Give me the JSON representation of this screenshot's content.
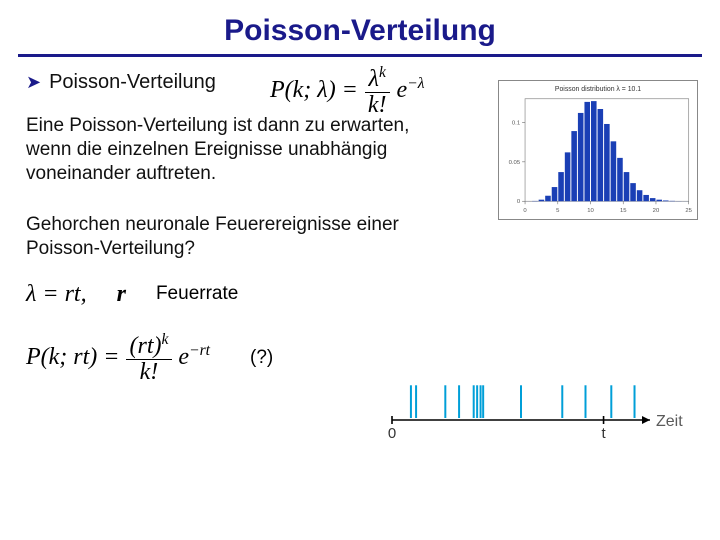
{
  "title": "Poisson-Verteilung",
  "bullet": {
    "icon": "➤",
    "text": "Poisson-Verteilung"
  },
  "formula_main": {
    "lhs": "P(k; λ) =",
    "num": "λ",
    "num_sup": "k",
    "den": "k!",
    "tail_e": "e",
    "tail_exp": "−λ"
  },
  "para1": "Eine Poisson-Verteilung ist dann zu erwarten, wenn die einzelnen Ereignisse unabhängig voneinander auftreten.",
  "para2": "Gehorchen neuronale Feuerereignisse einer Poisson-Verteilung?",
  "lambda_row": {
    "eq_lhs": "λ = rt,",
    "r": "r",
    "label": "Feuerrate"
  },
  "formula2": {
    "lhs": "P(k; rt) =",
    "num_base": "(rt)",
    "num_sup": "k",
    "den": "k!",
    "tail_e": "e",
    "tail_exp": "−rt"
  },
  "question_mark": "(?)",
  "poisson_chart": {
    "type": "bar",
    "title": "Poisson distribution   λ = 10.1",
    "title_fontsize": 7,
    "bar_color": "#1a3fb5",
    "border_color": "#888888",
    "background_color": "#ffffff",
    "xlim": [
      0,
      25
    ],
    "ylim": [
      0,
      0.13
    ],
    "values": [
      5e-05,
      0.0004,
      0.002,
      0.007,
      0.018,
      0.037,
      0.062,
      0.089,
      0.112,
      0.126,
      0.127,
      0.117,
      0.098,
      0.076,
      0.055,
      0.037,
      0.023,
      0.014,
      0.008,
      0.004,
      0.002,
      0.001,
      0.0005,
      0.0002,
      0.0001
    ],
    "bar_width": 0.85,
    "xtick_step": 5
  },
  "spike_plot": {
    "type": "raster",
    "axis_color": "#000000",
    "spike_color": "#009fd8",
    "spike_width": 2,
    "spike_height_ratio": 0.62,
    "xlabel_zero": "0",
    "xlabel_t": "t",
    "axis_label": "Zeit",
    "axis_label_color": "#5a5a5a",
    "xrange": [
      0,
      300
    ],
    "spike_times": [
      22,
      28,
      62,
      78,
      95,
      99,
      103,
      106,
      150,
      198,
      225,
      255,
      282
    ]
  }
}
